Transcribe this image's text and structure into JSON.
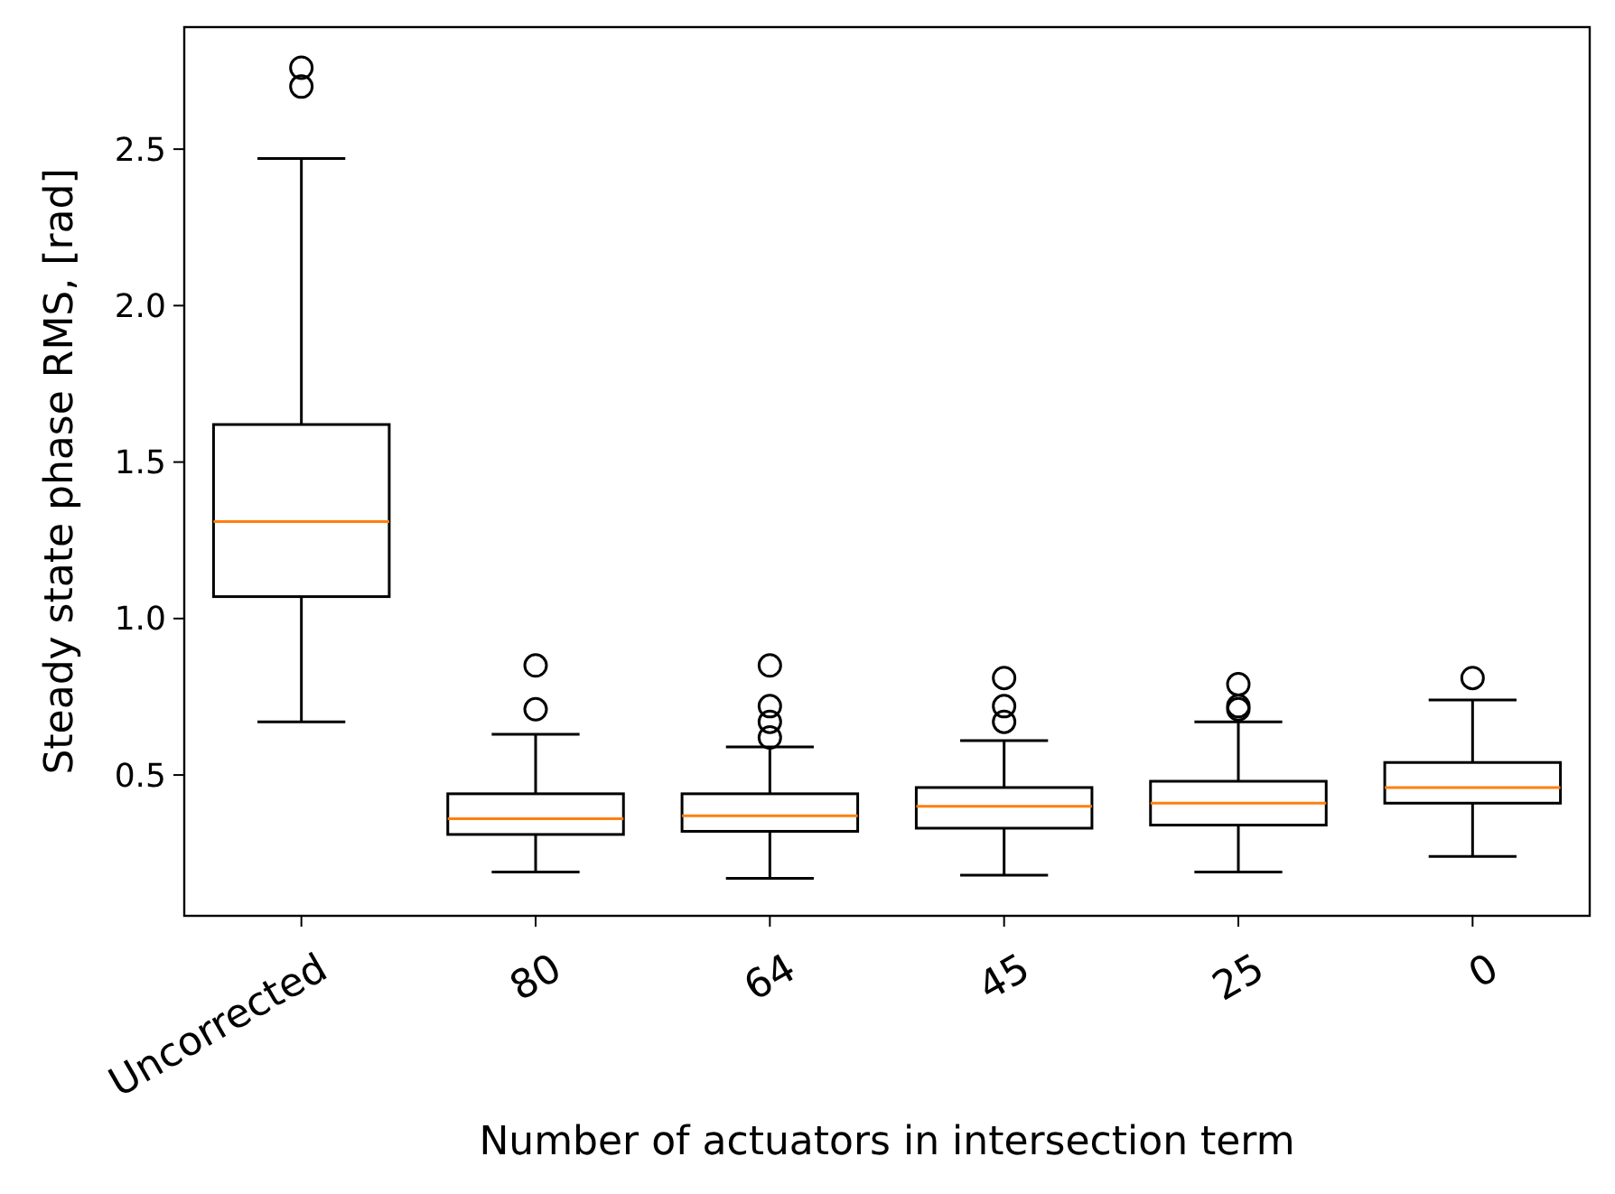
{
  "chart_data": {
    "type": "box",
    "xlabel": "Number of actuators in intersection term",
    "ylabel": "Steady state phase RMS, [rad]",
    "categories": [
      "Uncorrected",
      "80",
      "64",
      "45",
      "25",
      "0"
    ],
    "ylim": [
      0.05,
      2.89
    ],
    "yticks": [
      {
        "value": 0.5,
        "label": "0.5"
      },
      {
        "value": 1,
        "label": "1.0"
      },
      {
        "value": 1.5,
        "label": "1.5"
      },
      {
        "value": 2,
        "label": "2.0"
      },
      {
        "value": 2.5,
        "label": "2.5"
      }
    ],
    "grid": false,
    "color": "#000000",
    "boxes": [
      {
        "low": 0.67,
        "q1": 1.07,
        "median": 1.31,
        "q3": 1.62,
        "high": 2.47,
        "outliers": [
          2.7,
          2.76
        ]
      },
      {
        "low": 0.19,
        "q1": 0.31,
        "median": 0.36,
        "q3": 0.44,
        "high": 0.63,
        "outliers": [
          0.71,
          0.85
        ]
      },
      {
        "low": 0.17,
        "q1": 0.32,
        "median": 0.37,
        "q3": 0.44,
        "high": 0.59,
        "outliers": [
          0.62,
          0.67,
          0.72,
          0.85
        ]
      },
      {
        "low": 0.18,
        "q1": 0.33,
        "median": 0.4,
        "q3": 0.46,
        "high": 0.61,
        "outliers": [
          0.67,
          0.72,
          0.81
        ]
      },
      {
        "low": 0.19,
        "q1": 0.34,
        "median": 0.41,
        "q3": 0.48,
        "high": 0.67,
        "outliers": [
          0.71,
          0.72,
          0.79
        ]
      },
      {
        "low": 0.24,
        "q1": 0.41,
        "median": 0.46,
        "q3": 0.54,
        "high": 0.74,
        "outliers": [
          0.81
        ]
      }
    ]
  }
}
